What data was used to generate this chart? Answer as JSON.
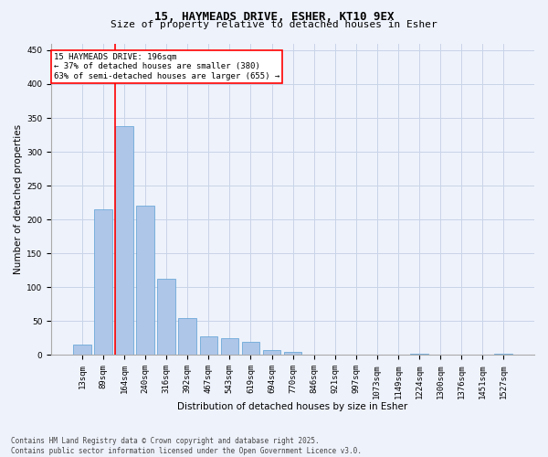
{
  "title_line1": "15, HAYMEADS DRIVE, ESHER, KT10 9EX",
  "title_line2": "Size of property relative to detached houses in Esher",
  "xlabel": "Distribution of detached houses by size in Esher",
  "ylabel": "Number of detached properties",
  "categories": [
    "13sqm",
    "89sqm",
    "164sqm",
    "240sqm",
    "316sqm",
    "392sqm",
    "467sqm",
    "543sqm",
    "619sqm",
    "694sqm",
    "770sqm",
    "846sqm",
    "921sqm",
    "997sqm",
    "1073sqm",
    "1149sqm",
    "1224sqm",
    "1300sqm",
    "1376sqm",
    "1451sqm",
    "1527sqm"
  ],
  "values": [
    15,
    215,
    338,
    221,
    112,
    54,
    27,
    25,
    19,
    8,
    5,
    0,
    0,
    0,
    0,
    0,
    2,
    0,
    0,
    0,
    2
  ],
  "bar_color": "#aec6e8",
  "bar_edge_color": "#5a9fd4",
  "red_line_bar_index": 2,
  "annotation_text": "15 HAYMEADS DRIVE: 196sqm\n← 37% of detached houses are smaller (380)\n63% of semi-detached houses are larger (655) →",
  "annotation_box_color": "white",
  "annotation_box_edge_color": "red",
  "ylim": [
    0,
    460
  ],
  "yticks": [
    0,
    50,
    100,
    150,
    200,
    250,
    300,
    350,
    400,
    450
  ],
  "footer_line1": "Contains HM Land Registry data © Crown copyright and database right 2025.",
  "footer_line2": "Contains public sector information licensed under the Open Government Licence v3.0.",
  "bg_color": "#eef2fb",
  "grid_color": "#c8d4e8",
  "title_fontsize": 9,
  "subtitle_fontsize": 8,
  "axis_label_fontsize": 7.5,
  "tick_fontsize": 6.5,
  "annotation_fontsize": 6.5,
  "footer_fontsize": 5.5,
  "bar_width": 0.85
}
